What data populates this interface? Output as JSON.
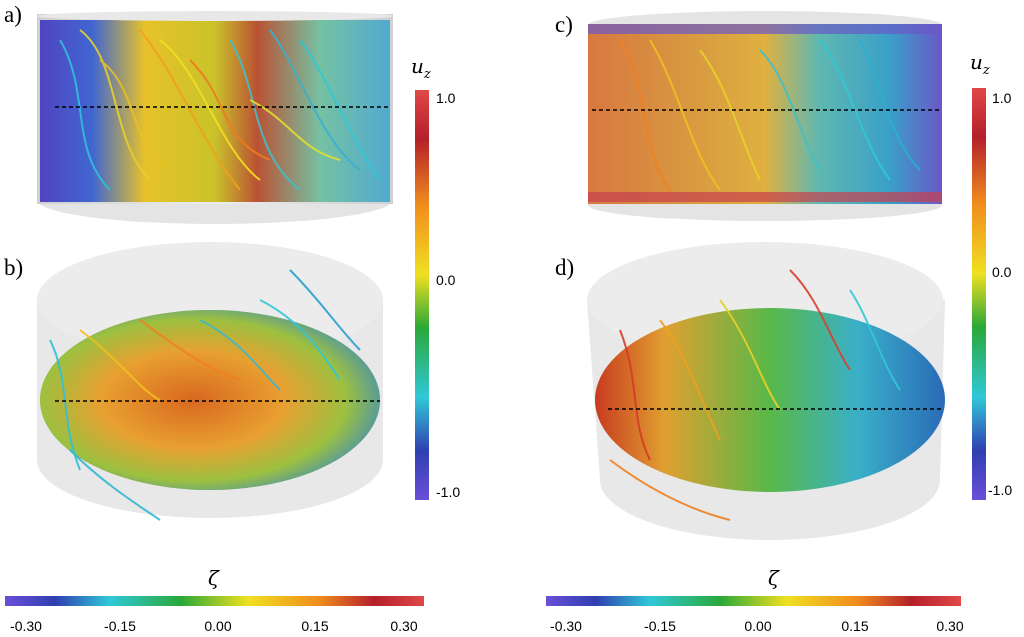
{
  "panels": [
    {
      "label": "a)"
    },
    {
      "label": "b)"
    },
    {
      "label": "c)"
    },
    {
      "label": "d)"
    }
  ],
  "uz_colorbar": {
    "symbol": "u",
    "subscript": "z",
    "ticks": [
      "1.0",
      "0.0",
      "-1.0"
    ]
  },
  "zeta_colorbar": {
    "symbol": "ζ",
    "ticks": [
      "-0.30",
      "-0.15",
      "0.00",
      "0.15",
      "0.30"
    ]
  },
  "colors": {
    "purple": "#5b46c9",
    "blue": "#2f4fd0",
    "cyan": "#33c8d8",
    "green": "#2aa838",
    "yellow": "#f0e020",
    "orange": "#f08c1e",
    "red": "#d42828",
    "cylinder": "#d8d8d8"
  }
}
